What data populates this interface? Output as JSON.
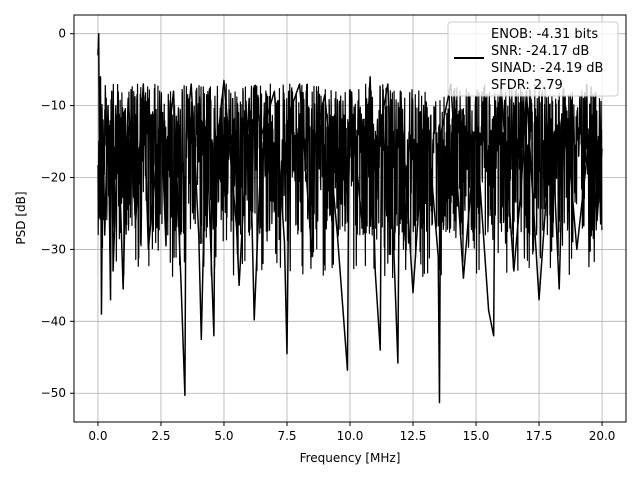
{
  "chart_data": {
    "type": "line",
    "title": "",
    "xlabel": "Frequency [MHz]",
    "ylabel": "PSD [dB]",
    "xlim": [
      -0.95,
      20.95
    ],
    "ylim": [
      -54,
      2.6
    ],
    "xticks": [
      0.0,
      2.5,
      5.0,
      7.5,
      10.0,
      12.5,
      15.0,
      17.5,
      20.0
    ],
    "xtick_labels": [
      "0.0",
      "2.5",
      "5.0",
      "7.5",
      "10.0",
      "12.5",
      "15.0",
      "17.5",
      "20.0"
    ],
    "yticks": [
      0,
      -10,
      -20,
      -30,
      -40,
      -50
    ],
    "ytick_labels": [
      "0",
      "−10",
      "−20",
      "−30",
      "−40",
      "−50"
    ],
    "grid": true,
    "legend": {
      "placement": "top-right",
      "entries": [
        "ENOB: -4.31 bits",
        "SNR: -24.17 dB",
        "SINAD: -24.19 dB",
        "SFDR: 2.79"
      ]
    },
    "line_color": "#000000",
    "series": [
      {
        "x": [
          0.0,
          0.03,
          0.07,
          0.1,
          0.14,
          0.2,
          0.27,
          0.4,
          0.5,
          0.52,
          0.55,
          0.6,
          0.8,
          1.0,
          1.1,
          1.2,
          1.5,
          1.8,
          2.0,
          2.5,
          2.7,
          2.75,
          3.0,
          3.3,
          3.45,
          3.5,
          3.7,
          4.0,
          4.1,
          4.3,
          4.6,
          4.65,
          5.0,
          5.5,
          5.6,
          6.0,
          6.2,
          6.5,
          7.0,
          7.4,
          7.5,
          7.6,
          8.0,
          8.5,
          8.6,
          9.0,
          9.5,
          9.9,
          9.95,
          10.0,
          10.5,
          10.8,
          11.0,
          11.2,
          11.25,
          11.5,
          11.9,
          11.95,
          12.0,
          12.5,
          13.0,
          13.5,
          13.55,
          13.6,
          14.0,
          14.5,
          15.0,
          15.5,
          15.7,
          15.75,
          16.0,
          16.5,
          16.8,
          17.0,
          17.5,
          18.0,
          18.3,
          18.5,
          19.0,
          19.5,
          19.8,
          20.0
        ],
        "y": [
          -3,
          0,
          -23.5,
          -6,
          -39,
          -12,
          -28,
          -10,
          -37,
          -19,
          -8,
          -33,
          -13,
          -35.5,
          -21,
          -9,
          -26,
          -7,
          -30,
          -11,
          -29.5,
          -16,
          -8,
          -35,
          -50.3,
          -14,
          -7,
          -28,
          -42.5,
          -12,
          -42,
          -18,
          -6.5,
          -27,
          -35,
          -9,
          -39.8,
          -14,
          -8,
          -29,
          -44.5,
          -11,
          -7,
          -31,
          -15,
          -8.5,
          -28,
          -46.8,
          -20,
          -9,
          -27,
          -6,
          -33,
          -44,
          -12,
          -7,
          -45.8,
          -21,
          -8,
          -36,
          -10,
          -31,
          -51.3,
          -14,
          -7,
          -34,
          -13,
          -38.5,
          -42,
          -16,
          -7.5,
          -33,
          -21,
          -8,
          -37,
          -12,
          -35.5,
          -9,
          -30,
          -14,
          -26,
          -16
        ]
      }
    ]
  }
}
